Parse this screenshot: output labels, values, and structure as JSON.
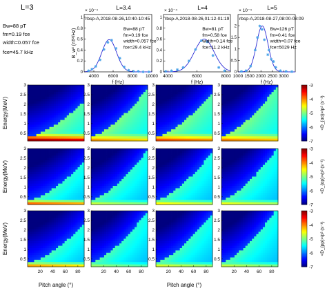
{
  "figure": {
    "left_panel": {
      "title": "L=3",
      "params": [
        "Bw=88 pT",
        "fm=0.19 fce",
        "width=0.057 fce",
        "fce=45.7 kHz"
      ]
    },
    "colorbar_labels": [
      "<D_{αα}>/p² (s⁻¹)",
      "<D_{αp}>/p² (s⁻¹)",
      "<D_{pp}>/p² (s⁻¹)"
    ],
    "colorbar_ticks": [
      "-3",
      "-4",
      "-5",
      "-6",
      "-7"
    ]
  },
  "chart_data": [
    {
      "type": "scatter",
      "panel": "spectrum-L3.4",
      "title": "L=3.4",
      "subtitle": "rbsp-A,2018-08-26,10:40-10:45",
      "scale_label": "× 10⁻⁴",
      "xlabel": "f (Hz)",
      "ylabel": "B_w² (nT²/Hz)",
      "xlim": [
        3000,
        10000
      ],
      "ylim": [
        0,
        1.05
      ],
      "xticks": [
        "4000",
        "6000",
        "8000",
        "10000"
      ],
      "yticks": [
        "0",
        "0.2",
        "0.4",
        "0.6",
        "0.8",
        "1"
      ],
      "annotations": [
        "Bw=88 pT",
        "fm=0.19 fce",
        "width=0.057 fce",
        "fce=29.4 kHz"
      ],
      "fit": {
        "center": 5590,
        "sigma": 760,
        "peak": 0.59
      },
      "points_x": [
        3450,
        3800,
        4200,
        4650,
        5050,
        5450,
        5850,
        6300,
        6700,
        7150,
        7600,
        8100,
        8600,
        9100,
        9700
      ],
      "points_y": [
        0.02,
        0.05,
        0.1,
        0.22,
        0.41,
        0.54,
        0.58,
        0.43,
        0.25,
        0.09,
        0.03,
        0.01,
        0.01,
        0.0,
        0.0
      ]
    },
    {
      "type": "scatter",
      "panel": "spectrum-L4",
      "title": "L=4",
      "subtitle": "rbsp-A,2018-08-26,01:12-01:19",
      "scale_label": "× 10⁻⁴",
      "xlabel": "f (Hz)",
      "ylabel": "",
      "xlim": [
        3700,
        8300
      ],
      "ylim": [
        0,
        1.05
      ],
      "xticks": [
        "4000",
        "6000",
        "8000"
      ],
      "yticks": [
        "0",
        "0.2",
        "0.4",
        "0.6",
        "0.8",
        "1"
      ],
      "annotations": [
        "Bw=81 pT",
        "fm=0.58 fce",
        "width=0.14 fce",
        "fce=11.2 kHz"
      ],
      "fit": {
        "center": 6500,
        "sigma": 680,
        "peak": 0.6
      },
      "points_x": [
        3850,
        4250,
        4650,
        5050,
        5450,
        5900,
        6300,
        6700,
        7100,
        7500,
        7900
      ],
      "points_y": [
        0.01,
        0.02,
        0.04,
        0.08,
        0.2,
        0.41,
        0.57,
        0.55,
        0.3,
        0.08,
        0.02
      ]
    },
    {
      "type": "scatter",
      "panel": "spectrum-L5",
      "title": "L=5",
      "subtitle": "rbsp-A,2018-08-27,08:00-08:09",
      "scale_label": "× 10⁻⁴",
      "xlabel": "f (Hz)",
      "ylabel": "",
      "xlim": [
        1000,
        3500
      ],
      "ylim": [
        0,
        2.5
      ],
      "xticks": [
        "1000",
        "1500",
        "2000",
        "2500",
        "3000"
      ],
      "yticks": [
        "0",
        "0.5",
        "1",
        "1.5",
        "2"
      ],
      "annotations": [
        "Bw=126 pT",
        "fm=0.41 fce",
        "width=0.07 fce",
        "fce=5029 Hz"
      ],
      "fit": {
        "center": 2060,
        "sigma": 250,
        "peak": 2.0
      },
      "points_x": [
        1150,
        1350,
        1550,
        1750,
        1850,
        1950,
        2050,
        2150,
        2300,
        2450,
        2650,
        2850,
        3100,
        3350
      ],
      "points_y": [
        0.02,
        0.05,
        0.25,
        0.95,
        1.5,
        2.0,
        1.85,
        1.4,
        0.75,
        0.55,
        0.2,
        0.05,
        0.02,
        0.01
      ],
      "extra_points": [
        [
          2350,
          0.95
        ],
        [
          2550,
          0.45
        ]
      ]
    },
    {
      "type": "heatmap",
      "panel": "diffusion-grid",
      "rows": [
        "Daa",
        "Dap",
        "Dpp"
      ],
      "columns": [
        "L=3",
        "L=3.4",
        "L=4",
        "L=5"
      ],
      "xlabel": "Pitch angle (°)",
      "ylabel": "Energy(MeV)",
      "xlim": [
        0,
        90
      ],
      "ylim": [
        0.1,
        3
      ],
      "xticks": [
        "20",
        "40",
        "60",
        "80"
      ],
      "yticks": [
        "0.5",
        "1",
        "1.5",
        "2",
        "2.5",
        "3"
      ],
      "colorbar": {
        "range": [
          -7,
          -3
        ],
        "ticks": [
          "-3",
          "-4",
          "-5",
          "-6",
          "-7"
        ]
      },
      "colormap": [
        "#00007f",
        "#0000ff",
        "#007fff",
        "#00ffff",
        "#7fff7f",
        "#ffff00",
        "#ff7f00",
        "#ff0000",
        "#7f0000"
      ]
    }
  ]
}
